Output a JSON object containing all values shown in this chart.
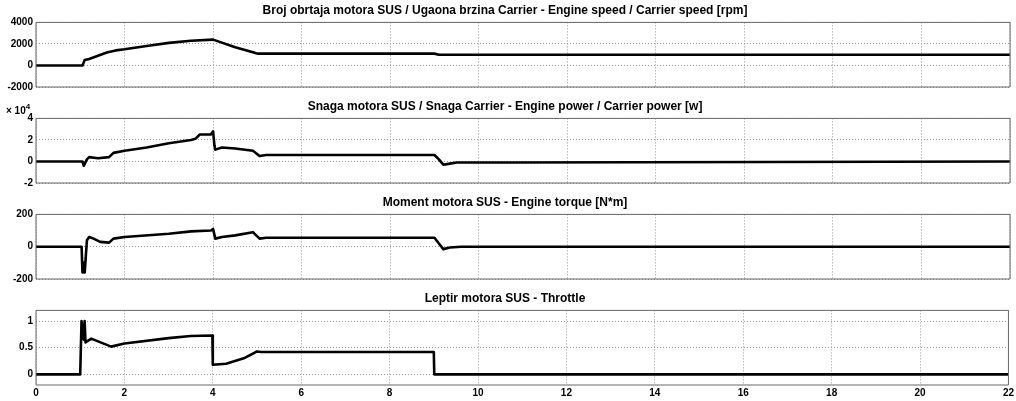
{
  "chart_data": [
    {
      "type": "line",
      "title": "Broj obrtaja motora SUS / Ugaona brzina Carrier - Engine speed / Carrier speed [rpm]",
      "series": [
        {
          "color": "#000000",
          "x": [
            0,
            1.05,
            1.1,
            1.2,
            1.4,
            1.6,
            1.8,
            2,
            2.5,
            3,
            3.5,
            4,
            4.5,
            5,
            6,
            8,
            9,
            9.1,
            10,
            22
          ],
          "values": [
            0,
            0,
            500,
            600,
            900,
            1200,
            1400,
            1500,
            1800,
            2100,
            2300,
            2400,
            1700,
            1100,
            1100,
            1100,
            1100,
            1000,
            1000,
            1000
          ]
        }
      ],
      "xlim": [
        0,
        22
      ],
      "xticks": [
        0,
        2,
        4,
        6,
        8,
        10,
        12,
        14,
        16,
        18,
        20,
        22
      ],
      "ylim": [
        -2000,
        4000
      ],
      "yticks": [
        -2000,
        0,
        2000,
        4000
      ],
      "grid": true,
      "tick_labels": "y"
    },
    {
      "type": "line",
      "title": "Snaga motora SUS / Snaga Carrier - Engine power / Carrier power [w]",
      "annotations": [
        "× 10$^{4}$"
      ],
      "series": [
        {
          "color": "#000000",
          "x": [
            0,
            1.05,
            1.08,
            1.15,
            1.2,
            1.4,
            1.65,
            1.75,
            2,
            2.5,
            3,
            3.5,
            3.6,
            3.7,
            3.95,
            4,
            4.03,
            4.05,
            4.2,
            4.5,
            4.9,
            5.05,
            5.2,
            9,
            9.1,
            9.2,
            9.35,
            9.5,
            10,
            22
          ],
          "values": [
            0,
            0,
            -0.4,
            0.2,
            0.4,
            0.3,
            0.4,
            0.8,
            1,
            1.3,
            1.7,
            2,
            2.1,
            2.5,
            2.5,
            2.8,
            1.5,
            1.1,
            1.3,
            1.2,
            1,
            0.5,
            0.6,
            0.6,
            0.2,
            -0.3,
            -0.2,
            -0.1,
            -0.1,
            0
          ]
        }
      ],
      "xlim": [
        0,
        22
      ],
      "xticks": [
        0,
        2,
        4,
        6,
        8,
        10,
        12,
        14,
        16,
        18,
        20,
        22
      ],
      "ylim": [
        -2,
        4
      ],
      "yticks": [
        -2,
        0,
        2,
        4
      ],
      "grid": true,
      "tick_labels": "y"
    },
    {
      "type": "line",
      "title": "Moment motora SUS - Engine torque [N*m]",
      "series": [
        {
          "color": "#000000",
          "x": [
            0,
            1.03,
            1.05,
            1.08,
            1.1,
            1.15,
            1.2,
            1.3,
            1.45,
            1.65,
            1.75,
            2,
            3,
            3.5,
            3.95,
            4,
            4.05,
            4.2,
            4.5,
            4.9,
            5.05,
            5.2,
            9,
            9.1,
            9.2,
            9.35,
            9.6,
            22
          ],
          "values": [
            0,
            0,
            -160,
            -100,
            -160,
            40,
            60,
            50,
            30,
            25,
            50,
            60,
            80,
            95,
            100,
            110,
            50,
            60,
            70,
            90,
            50,
            55,
            55,
            20,
            -15,
            -5,
            0,
            0
          ]
        }
      ],
      "xlim": [
        0,
        22
      ],
      "xticks": [
        0,
        2,
        4,
        6,
        8,
        10,
        12,
        14,
        16,
        18,
        20,
        22
      ],
      "ylim": [
        -200,
        200
      ],
      "yticks": [
        -200,
        0,
        200
      ],
      "grid": true,
      "tick_labels": "y"
    },
    {
      "type": "line",
      "title": "Leptir motora SUS - Throttle",
      "series": [
        {
          "color": "#000000",
          "x": [
            0,
            1,
            1.03,
            1.08,
            1.1,
            1.12,
            1.25,
            1.7,
            2,
            3,
            3.5,
            3.99,
            4,
            4.3,
            4.7,
            5,
            5.1,
            9,
            9.01,
            22
          ],
          "values": [
            0,
            0,
            1,
            0.65,
            1,
            0.6,
            0.67,
            0.52,
            0.58,
            0.68,
            0.72,
            0.73,
            0.18,
            0.2,
            0.3,
            0.43,
            0.42,
            0.42,
            0,
            0
          ]
        }
      ],
      "xlim": [
        0,
        22
      ],
      "xticks": [
        0,
        2,
        4,
        6,
        8,
        10,
        12,
        14,
        16,
        18,
        20,
        22
      ],
      "ylim": [
        -0.2,
        1.2
      ],
      "yticks": [
        0,
        0.5,
        1
      ],
      "grid": true
    }
  ]
}
